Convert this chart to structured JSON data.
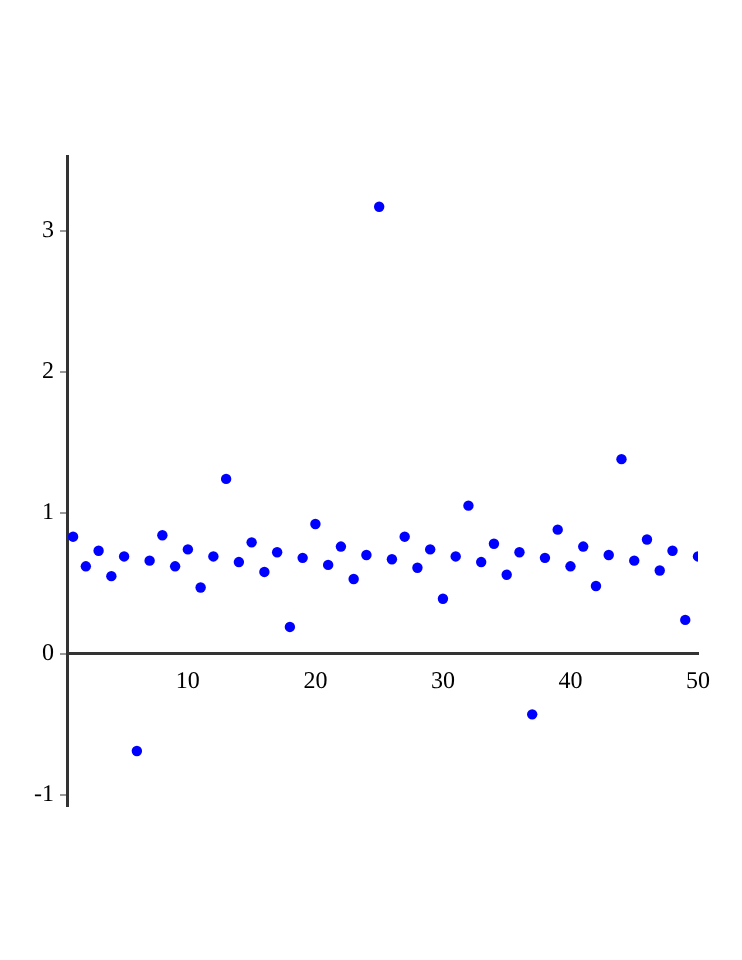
{
  "chart_data": {
    "type": "scatter",
    "marker": "circle",
    "grid": false,
    "legend": false,
    "x": [
      1,
      2,
      3,
      4,
      5,
      6,
      7,
      8,
      9,
      10,
      11,
      12,
      13,
      14,
      15,
      16,
      17,
      18,
      19,
      20,
      21,
      22,
      23,
      24,
      25,
      26,
      27,
      28,
      29,
      30,
      31,
      32,
      33,
      34,
      35,
      36,
      37,
      38,
      39,
      40,
      41,
      42,
      43,
      44,
      45,
      46,
      47,
      48,
      49,
      50
    ],
    "series": [
      {
        "color": "#0000ff",
        "values": [
          0.83,
          0.62,
          0.73,
          0.55,
          0.69,
          -0.69,
          0.66,
          0.84,
          0.62,
          0.74,
          0.47,
          0.69,
          1.24,
          0.65,
          0.79,
          0.58,
          0.72,
          0.19,
          0.68,
          0.92,
          0.63,
          0.76,
          0.53,
          0.7,
          3.17,
          0.67,
          0.83,
          0.61,
          0.74,
          0.39,
          0.69,
          1.05,
          0.65,
          0.78,
          0.56,
          0.72,
          -0.43,
          0.68,
          0.88,
          0.62,
          0.76,
          0.48,
          0.7,
          1.38,
          0.66,
          0.81,
          0.59,
          0.73,
          0.24,
          0.69
        ]
      }
    ],
    "xlim": [
      0.6,
      50
    ],
    "ylim": [
      -1.08,
      3.53
    ],
    "xticks": [
      10,
      20,
      30,
      40,
      50
    ],
    "yticks": [
      -1,
      0,
      1,
      2,
      3
    ]
  }
}
